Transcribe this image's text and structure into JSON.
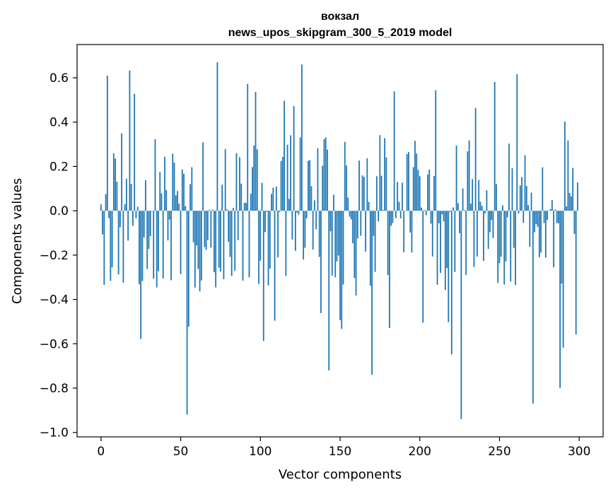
{
  "chart_data": {
    "type": "bar",
    "title": "вокзал",
    "subtitle": "news_upos_skipgram_300_5_2019 model",
    "xlabel": "Vector components",
    "ylabel": "Components values",
    "xlim": [
      -15,
      315
    ],
    "ylim": [
      -1.02,
      0.75
    ],
    "xticks": [
      0,
      50,
      100,
      150,
      200,
      250,
      300
    ],
    "xtick_labels": [
      "0",
      "50",
      "100",
      "150",
      "200",
      "250",
      "300"
    ],
    "yticks": [
      0.6,
      0.4,
      0.2,
      0.0,
      -0.2,
      -0.4,
      -0.6,
      -0.8,
      -1.0
    ],
    "ytick_labels": [
      "0.6",
      "0.4",
      "0.2",
      "0.0",
      "−0.2",
      "−0.4",
      "−0.6",
      "−0.8",
      "−1.0"
    ],
    "bar_color": "#1f77b4",
    "grid": false,
    "legend": null,
    "n_components": 300,
    "notable_values": [
      {
        "x": 4,
        "y": 0.61
      },
      {
        "x": 54,
        "y": -0.92
      },
      {
        "x": 73,
        "y": 0.67
      },
      {
        "x": 126,
        "y": 0.66
      },
      {
        "x": 143,
        "y": -0.72
      },
      {
        "x": 170,
        "y": -0.74
      },
      {
        "x": 226,
        "y": -0.94
      },
      {
        "x": 271,
        "y": -0.87
      },
      {
        "x": 288,
        "y": -0.8
      }
    ]
  }
}
